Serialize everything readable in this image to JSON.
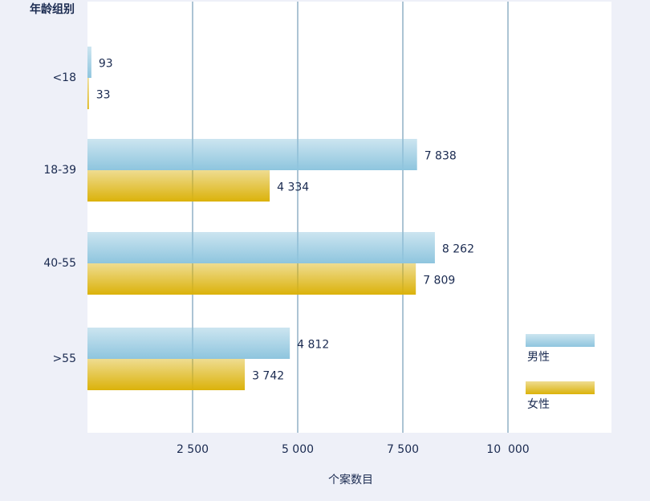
{
  "chart_data": {
    "type": "hbar",
    "xlabel": "个案数目",
    "ylabel": "年龄组别",
    "categories": [
      "<18",
      "18-39",
      "40-55",
      ">55"
    ],
    "series": [
      {
        "name": "男性",
        "color": "#8ec5de",
        "values": [
          93,
          7838,
          8262,
          4812
        ],
        "value_labels": [
          "93",
          "7 838",
          "8 262",
          "4 812"
        ]
      },
      {
        "name": "女性",
        "color": "#dbb20a",
        "values": [
          33,
          4334,
          7809,
          3742
        ],
        "value_labels": [
          "33",
          "4 334",
          "7 809",
          "3 742"
        ]
      }
    ],
    "xlim": [
      0,
      12500
    ],
    "xticks": [
      {
        "value": 2500,
        "label": "2 500"
      },
      {
        "value": 5000,
        "label": "5 000"
      },
      {
        "value": 7500,
        "label": "7 500"
      },
      {
        "value": 10000,
        "label": "10  000"
      }
    ],
    "grid": true,
    "legend": "lower right"
  }
}
